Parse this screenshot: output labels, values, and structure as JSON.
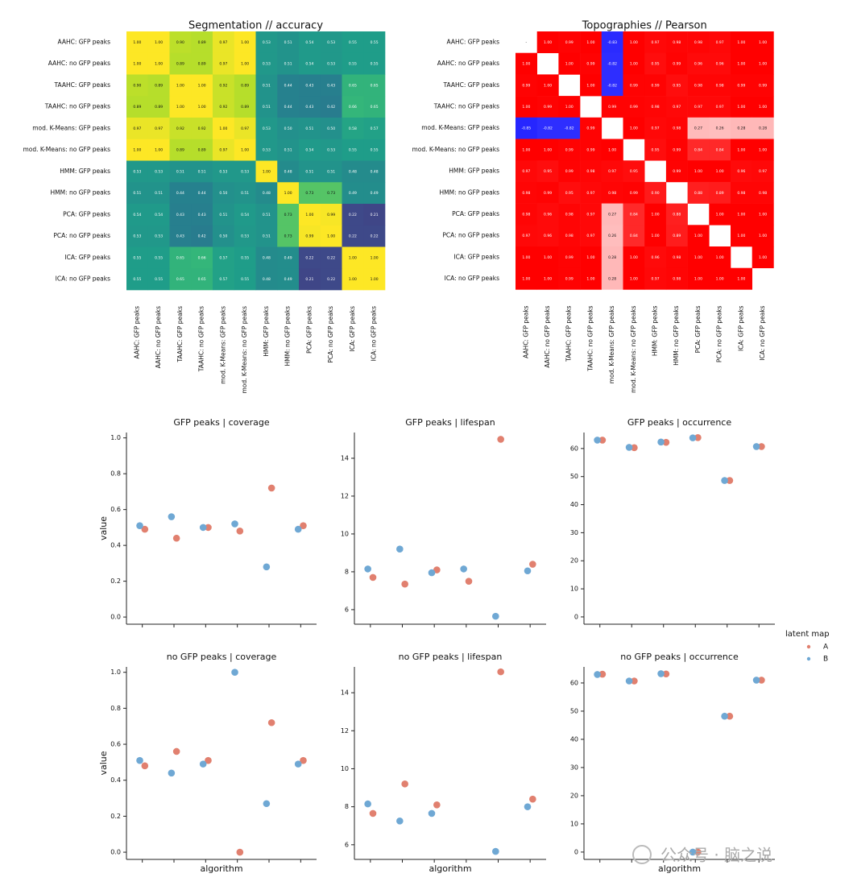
{
  "chart_data": [
    {
      "type": "heatmap",
      "title": "Segmentation // accuracy",
      "colormap": "viridis",
      "vmin": 0,
      "vmax": 1,
      "y_labels": [
        "AAHC: GFP peaks",
        "AAHC: no GFP peaks",
        "TAAHC: GFP peaks",
        "TAAHC: no GFP peaks",
        "mod. K-Means: GFP peaks",
        "mod. K-Means: no GFP peaks",
        "HMM: GFP peaks",
        "HMM: no GFP peaks",
        "PCA: GFP peaks",
        "PCA: no GFP peaks",
        "ICA: GFP peaks",
        "ICA: no GFP peaks"
      ],
      "x_labels": [
        "AAHC: GFP peaks",
        "AAHC: no GFP peaks",
        "TAAHC: GFP peaks",
        "TAAHC: no GFP peaks",
        "mod. K-Means: GFP peaks",
        "mod. K-Means: no GFP peaks",
        "HMM: GFP peaks",
        "HMM: no GFP peaks",
        "PCA: GFP peaks",
        "PCA: no GFP peaks",
        "ICA: GFP peaks",
        "ICA: no GFP peaks"
      ],
      "values": [
        [
          1,
          1,
          0.9,
          0.89,
          0.97,
          1,
          0.53,
          0.51,
          0.54,
          0.53,
          0.55,
          0.55
        ],
        [
          1,
          1,
          0.89,
          0.89,
          0.97,
          1,
          0.53,
          0.51,
          0.54,
          0.53,
          0.55,
          0.55
        ],
        [
          0.9,
          0.89,
          1,
          1,
          0.92,
          0.89,
          0.51,
          0.44,
          0.43,
          0.43,
          0.65,
          0.65
        ],
        [
          0.89,
          0.89,
          1,
          1,
          0.92,
          0.89,
          0.51,
          0.44,
          0.43,
          0.42,
          0.66,
          0.65
        ],
        [
          0.97,
          0.97,
          0.92,
          0.92,
          1,
          0.97,
          0.53,
          0.5,
          0.51,
          0.5,
          0.58,
          0.57
        ],
        [
          1,
          1,
          0.89,
          0.89,
          0.97,
          1,
          0.53,
          0.51,
          0.54,
          0.53,
          0.55,
          0.55
        ],
        [
          0.53,
          0.53,
          0.51,
          0.51,
          0.53,
          0.53,
          1,
          0.48,
          0.51,
          0.51,
          0.48,
          0.48
        ],
        [
          0.51,
          0.51,
          0.44,
          0.44,
          0.5,
          0.51,
          0.48,
          1,
          0.73,
          0.73,
          0.49,
          0.49
        ],
        [
          0.54,
          0.54,
          0.43,
          0.43,
          0.51,
          0.54,
          0.51,
          0.73,
          1,
          0.99,
          0.22,
          0.21
        ],
        [
          0.53,
          0.53,
          0.43,
          0.42,
          0.5,
          0.53,
          0.51,
          0.73,
          0.99,
          1,
          0.22,
          0.22
        ],
        [
          0.55,
          0.55,
          0.65,
          0.66,
          0.57,
          0.55,
          0.48,
          0.49,
          0.22,
          0.22,
          1,
          1
        ],
        [
          0.55,
          0.55,
          0.65,
          0.65,
          0.57,
          0.55,
          0.48,
          0.49,
          0.21,
          0.22,
          1,
          1
        ]
      ],
      "value_labels": [
        [
          "1.00",
          "1.00",
          "0.90",
          "0.89",
          "0.97",
          "1.00",
          "0.53",
          "0.51",
          "0.54",
          "0.53",
          "0.55",
          "0.55"
        ],
        [
          "1.00",
          "1.00",
          "0.89",
          "0.89",
          "0.97",
          "1.00",
          "0.53",
          "0.51",
          "0.54",
          "0.53",
          "0.55",
          "0.55"
        ],
        [
          "0.90",
          "0.89",
          "1.00",
          "1.00",
          "0.92",
          "0.89",
          "0.51",
          "0.44",
          "0.43",
          "0.43",
          "0.65",
          "0.65"
        ],
        [
          "0.89",
          "0.89",
          "1.00",
          "1.00",
          "0.92",
          "0.89",
          "0.51",
          "0.44",
          "0.43",
          "0.42",
          "0.66",
          "0.65"
        ],
        [
          "0.97",
          "0.97",
          "0.92",
          "0.92",
          "1.00",
          "0.97",
          "0.53",
          "0.50",
          "0.51",
          "0.50",
          "0.58",
          "0.57"
        ],
        [
          "1.00",
          "1.00",
          "0.89",
          "0.89",
          "0.97",
          "1.00",
          "0.53",
          "0.51",
          "0.54",
          "0.53",
          "0.55",
          "0.55"
        ],
        [
          "0.53",
          "0.53",
          "0.51",
          "0.51",
          "0.53",
          "0.53",
          "1.00",
          "0.48",
          "0.51",
          "0.51",
          "0.48",
          "0.48"
        ],
        [
          "0.51",
          "0.51",
          "0.44",
          "0.44",
          "0.50",
          "0.51",
          "0.48",
          "1.00",
          "0.73",
          "0.73",
          "0.49",
          "0.49"
        ],
        [
          "0.54",
          "0.54",
          "0.43",
          "0.43",
          "0.51",
          "0.54",
          "0.51",
          "0.73",
          "1.00",
          "0.99",
          "0.22",
          "0.21"
        ],
        [
          "0.53",
          "0.53",
          "0.43",
          "0.42",
          "0.50",
          "0.53",
          "0.51",
          "0.73",
          "0.99",
          "1.00",
          "0.22",
          "0.22"
        ],
        [
          "0.55",
          "0.55",
          "0.65",
          "0.66",
          "0.57",
          "0.55",
          "0.48",
          "0.49",
          "0.22",
          "0.22",
          "1.00",
          "1.00"
        ],
        [
          "0.55",
          "0.55",
          "0.65",
          "0.65",
          "0.57",
          "0.55",
          "0.48",
          "0.49",
          "0.21",
          "0.22",
          "1.00",
          "1.00"
        ]
      ]
    },
    {
      "type": "heatmap",
      "title": "Topographies // Pearson",
      "colormap": "bwr",
      "vmin": -1,
      "vmax": 1,
      "y_labels": [
        "AAHC: GFP peaks",
        "AAHC: no GFP peaks",
        "TAAHC: GFP peaks",
        "TAAHC: no GFP peaks",
        "mod. K-Means: GFP peaks",
        "mod. K-Means: no GFP peaks",
        "HMM: GFP peaks",
        "HMM: no GFP peaks",
        "PCA: GFP peaks",
        "PCA: no GFP peaks",
        "ICA: GFP peaks",
        "ICA: no GFP peaks"
      ],
      "x_labels": [
        "AAHC: GFP peaks",
        "AAHC: no GFP peaks",
        "TAAHC: GFP peaks",
        "TAAHC: no GFP peaks",
        "mod. K-Means: GFP peaks",
        "mod. K-Means: no GFP peaks",
        "HMM: GFP peaks",
        "HMM: no GFP peaks",
        "PCA: GFP peaks",
        "PCA: no GFP peaks",
        "ICA: GFP peaks",
        "ICA: no GFP peaks"
      ],
      "values": [
        [
          null,
          1,
          0.99,
          1,
          -0.83,
          1,
          0.97,
          0.98,
          0.98,
          0.97,
          1,
          1
        ],
        [
          1,
          null,
          1,
          0.99,
          -0.82,
          1,
          0.95,
          0.99,
          0.96,
          0.96,
          1,
          1
        ],
        [
          0.99,
          1,
          null,
          1,
          -0.82,
          0.99,
          0.99,
          0.95,
          0.98,
          0.98,
          0.99,
          0.99
        ],
        [
          1,
          0.99,
          1,
          null,
          0.99,
          0.99,
          0.98,
          0.97,
          0.97,
          0.97,
          1,
          1
        ],
        [
          -0.85,
          -0.82,
          -0.82,
          0.99,
          null,
          1,
          0.97,
          0.98,
          0.27,
          0.26,
          0.28,
          0.28
        ],
        [
          1,
          1,
          0.99,
          0.99,
          1,
          null,
          0.95,
          0.99,
          0.84,
          0.84,
          1,
          1
        ],
        [
          0.97,
          0.95,
          0.99,
          0.98,
          0.97,
          0.95,
          null,
          0.99,
          1,
          1,
          0.96,
          0.97
        ],
        [
          0.98,
          0.99,
          0.95,
          0.97,
          0.98,
          0.99,
          0.9,
          null,
          0.88,
          0.89,
          0.98,
          0.98
        ],
        [
          0.98,
          0.96,
          0.98,
          0.97,
          0.27,
          0.84,
          1,
          0.88,
          null,
          1,
          1,
          1
        ],
        [
          0.97,
          0.96,
          0.98,
          0.97,
          0.26,
          0.84,
          1,
          0.89,
          1,
          null,
          1,
          1
        ],
        [
          1,
          1,
          0.99,
          1,
          0.28,
          1,
          0.96,
          0.98,
          1,
          1,
          null,
          1
        ],
        [
          1,
          1,
          0.99,
          1,
          0.28,
          1,
          0.97,
          0.98,
          1,
          1,
          1,
          null
        ]
      ],
      "value_labels": [
        [
          "-",
          "1.00",
          "0.99",
          "1.00",
          "-0.83",
          "1.00",
          "0.97",
          "0.98",
          "0.98",
          "0.97",
          "1.00",
          "1.00"
        ],
        [
          "1.00",
          null,
          "1.00",
          "0.99",
          "-0.82",
          "1.00",
          "0.95",
          "0.99",
          "0.96",
          "0.96",
          "1.00",
          "1.00"
        ],
        [
          "0.99",
          "1.00",
          null,
          "1.00",
          "-0.82",
          "0.99",
          "0.99",
          "0.95",
          "0.98",
          "0.98",
          "0.99",
          "0.99"
        ],
        [
          "1.00",
          "0.99",
          "1.00",
          null,
          "0.99",
          "0.99",
          "0.98",
          "0.97",
          "0.97",
          "0.97",
          "1.00",
          "1.00"
        ],
        [
          "-0.85",
          "-0.82",
          "-0.82",
          "0.99",
          null,
          "1.00",
          "0.97",
          "0.98",
          "0.27",
          "0.26",
          "0.28",
          "0.28"
        ],
        [
          "1.00",
          "1.00",
          "0.99",
          "0.99",
          "1.00",
          null,
          "0.95",
          "0.99",
          "0.84",
          "0.84",
          "1.00",
          "1.00"
        ],
        [
          "0.97",
          "0.95",
          "0.99",
          "0.98",
          "0.97",
          "0.95",
          null,
          "0.99",
          "1.00",
          "1.00",
          "0.96",
          "0.97"
        ],
        [
          "0.98",
          "0.99",
          "0.95",
          "0.97",
          "0.98",
          "0.99",
          "0.90",
          null,
          "0.88",
          "0.89",
          "0.98",
          "0.98"
        ],
        [
          "0.98",
          "0.96",
          "0.98",
          "0.97",
          "0.27",
          "0.84",
          "1.00",
          "0.88",
          null,
          "1.00",
          "1.00",
          "1.00"
        ],
        [
          "0.97",
          "0.96",
          "0.98",
          "0.97",
          "0.26",
          "0.84",
          "1.00",
          "0.89",
          "1.00",
          null,
          "1.00",
          "1.00"
        ],
        [
          "1.00",
          "1.00",
          "0.99",
          "1.00",
          "0.28",
          "1.00",
          "0.96",
          "0.98",
          "1.00",
          "1.00",
          null,
          "1.00"
        ],
        [
          "1.00",
          "1.00",
          "0.99",
          "1.00",
          "0.28",
          "1.00",
          "0.97",
          "0.98",
          "1.00",
          "1.00",
          "1.00",
          null
        ]
      ]
    },
    {
      "type": "strip",
      "title": "GFP peaks | coverage",
      "ylabel": "value",
      "categories": [
        null,
        null,
        null,
        null,
        null,
        null
      ],
      "series": [
        {
          "name": "A",
          "color": "#e1806f",
          "values": [
            0.49,
            0.44,
            0.5,
            0.48,
            0.72,
            0.51
          ]
        },
        {
          "name": "B",
          "color": "#6fa8d4",
          "values": [
            0.51,
            0.56,
            0.5,
            0.52,
            0.28,
            0.49
          ]
        }
      ],
      "ylim": [
        -0.04,
        1.03
      ],
      "yticks": [
        {
          "value": 0,
          "label": "0.0"
        },
        {
          "value": 0.2,
          "label": "0.2"
        },
        {
          "value": 0.4,
          "label": "0.4"
        },
        {
          "value": 0.6,
          "label": "0.6"
        },
        {
          "value": 0.8,
          "label": "0.8"
        },
        {
          "value": 1,
          "label": "1.0"
        }
      ]
    },
    {
      "type": "strip",
      "title": "GFP peaks | lifespan",
      "categories": [
        null,
        null,
        null,
        null,
        null,
        null
      ],
      "series": [
        {
          "name": "A",
          "color": "#e1806f",
          "values": [
            7.7,
            7.35,
            8.1,
            7.5,
            15.0,
            8.4
          ]
        },
        {
          "name": "B",
          "color": "#6fa8d4",
          "values": [
            8.15,
            9.2,
            7.95,
            8.15,
            5.65,
            8.05
          ]
        }
      ],
      "ylim": [
        5.23,
        15.36
      ],
      "yticks": [
        6,
        8,
        10,
        12,
        14
      ]
    },
    {
      "type": "strip",
      "title": "GFP peaks | occurrence",
      "categories": [
        null,
        null,
        null,
        null,
        null,
        null
      ],
      "series": [
        {
          "name": "A",
          "color": "#e1806f",
          "values": [
            63,
            60.3,
            62.2,
            63.9,
            48.6,
            60.7
          ]
        },
        {
          "name": "B",
          "color": "#6fa8d4",
          "values": [
            63,
            60.4,
            62.3,
            63.8,
            48.6,
            60.7
          ]
        }
      ],
      "ylim": [
        -2.6,
        65.7
      ],
      "yticks": [
        0,
        10,
        20,
        30,
        40,
        50,
        60
      ]
    },
    {
      "type": "strip",
      "title": "no GFP peaks | coverage",
      "ylabel": "value",
      "xlabel": "algorithm",
      "categories": [
        null,
        null,
        null,
        null,
        null,
        null
      ],
      "series": [
        {
          "name": "A",
          "color": "#e1806f",
          "values": [
            0.48,
            0.56,
            0.51,
            0,
            0.72,
            0.51
          ]
        },
        {
          "name": "B",
          "color": "#6fa8d4",
          "values": [
            0.51,
            0.44,
            0.49,
            1,
            0.27,
            0.49
          ]
        }
      ],
      "ylim": [
        -0.04,
        1.03
      ],
      "yticks": [
        {
          "value": 0,
          "label": "0.0"
        },
        {
          "value": 0.2,
          "label": "0.2"
        },
        {
          "value": 0.4,
          "label": "0.4"
        },
        {
          "value": 0.6,
          "label": "0.6"
        },
        {
          "value": 0.8,
          "label": "0.8"
        },
        {
          "value": 1,
          "label": "1.0"
        }
      ]
    },
    {
      "type": "strip",
      "title": "no GFP peaks | lifespan",
      "xlabel": "algorithm",
      "categories": [
        null,
        null,
        null,
        null,
        null,
        null
      ],
      "series": [
        {
          "name": "A",
          "color": "#e1806f",
          "values": [
            7.65,
            9.2,
            8.1,
            null,
            15.1,
            8.4
          ]
        },
        {
          "name": "B",
          "color": "#6fa8d4",
          "values": [
            8.15,
            7.25,
            7.65,
            null,
            5.65,
            8.0
          ]
        }
      ],
      "ylim": [
        5.23,
        15.36
      ],
      "yticks": [
        6,
        8,
        10,
        12,
        14
      ]
    },
    {
      "type": "strip",
      "title": "no GFP peaks | occurrence",
      "xlabel": "algorithm",
      "categories": [
        null,
        null,
        null,
        null,
        null,
        null
      ],
      "series": [
        {
          "name": "A",
          "color": "#e1806f",
          "values": [
            63.1,
            60.7,
            63.2,
            0,
            48.2,
            61.0
          ]
        },
        {
          "name": "B",
          "color": "#6fa8d4",
          "values": [
            63.0,
            60.7,
            63.3,
            0,
            48.2,
            61.0
          ]
        }
      ],
      "ylim": [
        -2.6,
        65.7
      ],
      "yticks": [
        0,
        10,
        20,
        30,
        40,
        50,
        60
      ]
    }
  ],
  "legend": {
    "title": "latent map"
  },
  "watermark": "公众号 · 脑之说"
}
